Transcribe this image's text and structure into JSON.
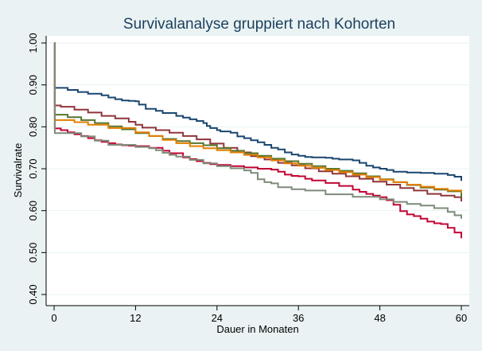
{
  "chart_data": {
    "type": "line",
    "step": true,
    "title": "Survivalanalyse gruppiert nach Kohorten",
    "xlabel": "Dauer in Monaten",
    "ylabel": "Survivalrate",
    "xlim": [
      0,
      60
    ],
    "ylim": [
      0.4,
      1.0
    ],
    "xticks": [
      0,
      12,
      24,
      36,
      48,
      60
    ],
    "yticks": [
      0.4,
      0.5,
      0.6,
      0.7,
      0.8,
      0.9,
      1.0
    ],
    "yticklabels": [
      "0.40",
      "0.50",
      "0.60",
      "0.70",
      "0.80",
      "0.90",
      "1.00"
    ],
    "xticklabels": [
      "0",
      "12",
      "24",
      "36",
      "48",
      "60"
    ],
    "grid": "horizontal",
    "legend": "none",
    "series": [
      {
        "color": "#1a476f",
        "x": [
          0,
          0.1,
          2,
          3.5,
          5,
          7,
          8,
          9,
          10,
          11,
          12,
          12.5,
          13.5,
          15,
          16,
          18,
          19,
          20,
          21,
          22,
          22.5,
          23,
          24,
          24.5,
          26,
          27,
          28,
          29,
          30,
          31,
          32,
          33,
          34,
          35,
          36,
          37,
          38,
          40,
          41,
          42,
          44,
          45,
          46,
          47,
          48,
          49,
          50,
          52,
          54,
          56,
          58,
          59,
          60
        ],
        "y": [
          1.0,
          0.893,
          0.888,
          0.883,
          0.879,
          0.875,
          0.87,
          0.866,
          0.863,
          0.862,
          0.861,
          0.853,
          0.843,
          0.838,
          0.833,
          0.826,
          0.822,
          0.818,
          0.814,
          0.809,
          0.802,
          0.797,
          0.792,
          0.789,
          0.786,
          0.777,
          0.773,
          0.768,
          0.763,
          0.757,
          0.75,
          0.746,
          0.739,
          0.734,
          0.731,
          0.728,
          0.727,
          0.726,
          0.724,
          0.722,
          0.72,
          0.714,
          0.707,
          0.703,
          0.7,
          0.697,
          0.693,
          0.691,
          0.69,
          0.688,
          0.685,
          0.681,
          0.671
        ]
      },
      {
        "color": "#90353b",
        "x": [
          0,
          0.1,
          1,
          3,
          5,
          7,
          9,
          11,
          12,
          13,
          15,
          17,
          19,
          21,
          23,
          25,
          27,
          29,
          31,
          33,
          35,
          37,
          39,
          41,
          43,
          45,
          47,
          49,
          51,
          53,
          55,
          57,
          59,
          60
        ],
        "y": [
          1.0,
          0.851,
          0.848,
          0.841,
          0.834,
          0.826,
          0.82,
          0.812,
          0.805,
          0.798,
          0.792,
          0.786,
          0.778,
          0.77,
          0.76,
          0.75,
          0.739,
          0.73,
          0.722,
          0.714,
          0.708,
          0.701,
          0.694,
          0.688,
          0.682,
          0.676,
          0.669,
          0.662,
          0.654,
          0.648,
          0.64,
          0.636,
          0.632,
          0.622
        ]
      },
      {
        "color": "#55752f",
        "x": [
          0,
          0.1,
          2,
          4,
          6,
          8,
          10,
          12,
          14,
          16,
          18,
          20,
          22,
          24,
          26,
          28,
          30,
          32,
          34,
          36,
          38,
          40,
          42,
          44,
          46,
          48,
          50,
          52,
          54,
          56,
          58,
          60
        ],
        "y": [
          1.0,
          0.829,
          0.823,
          0.816,
          0.809,
          0.801,
          0.794,
          0.785,
          0.778,
          0.771,
          0.766,
          0.761,
          0.756,
          0.749,
          0.743,
          0.737,
          0.731,
          0.724,
          0.718,
          0.712,
          0.706,
          0.7,
          0.695,
          0.689,
          0.682,
          0.675,
          0.668,
          0.661,
          0.655,
          0.65,
          0.646,
          0.631
        ]
      },
      {
        "color": "#e37e00",
        "x": [
          0,
          0.1,
          3,
          5,
          8,
          12,
          14,
          16,
          18,
          20,
          22,
          24,
          26,
          28,
          30,
          32,
          34,
          36,
          38,
          40,
          42,
          44,
          46,
          48,
          50,
          52,
          54,
          56,
          58,
          60
        ],
        "y": [
          1.0,
          0.816,
          0.811,
          0.805,
          0.797,
          0.787,
          0.778,
          0.769,
          0.761,
          0.754,
          0.749,
          0.744,
          0.739,
          0.733,
          0.727,
          0.72,
          0.713,
          0.707,
          0.702,
          0.697,
          0.692,
          0.686,
          0.68,
          0.674,
          0.668,
          0.662,
          0.657,
          0.652,
          0.648,
          0.642
        ]
      },
      {
        "color": "#c10534",
        "x": [
          0,
          0.1,
          1,
          2,
          3,
          4,
          5,
          6,
          7,
          8,
          9,
          10,
          11,
          12,
          14,
          16,
          17,
          19,
          20,
          21,
          22,
          23,
          24,
          26,
          28,
          30,
          32,
          33,
          34,
          35,
          36,
          37,
          38,
          40,
          42,
          44,
          45,
          46,
          47,
          48,
          49,
          50,
          51,
          52,
          53,
          54,
          55,
          56,
          57,
          58,
          59,
          60
        ],
        "y": [
          1.0,
          0.796,
          0.792,
          0.787,
          0.782,
          0.778,
          0.773,
          0.768,
          0.764,
          0.761,
          0.758,
          0.756,
          0.755,
          0.754,
          0.75,
          0.743,
          0.737,
          0.727,
          0.723,
          0.718,
          0.714,
          0.711,
          0.709,
          0.706,
          0.703,
          0.7,
          0.698,
          0.693,
          0.686,
          0.683,
          0.682,
          0.676,
          0.672,
          0.666,
          0.659,
          0.65,
          0.645,
          0.64,
          0.636,
          0.632,
          0.625,
          0.614,
          0.599,
          0.591,
          0.587,
          0.581,
          0.574,
          0.57,
          0.568,
          0.559,
          0.548,
          0.534
        ]
      },
      {
        "color": "#7d8c7a",
        "x": [
          0,
          0.1,
          4,
          6,
          8,
          12,
          14,
          15,
          16,
          17,
          18,
          20,
          22,
          24,
          26,
          28,
          29,
          30,
          31,
          32,
          33,
          35,
          37,
          40,
          44,
          48,
          50,
          52,
          54,
          56,
          58,
          59,
          60
        ],
        "y": [
          1.0,
          0.785,
          0.777,
          0.767,
          0.757,
          0.752,
          0.749,
          0.744,
          0.738,
          0.733,
          0.729,
          0.721,
          0.713,
          0.706,
          0.701,
          0.696,
          0.69,
          0.675,
          0.668,
          0.665,
          0.656,
          0.651,
          0.648,
          0.639,
          0.633,
          0.627,
          0.621,
          0.616,
          0.612,
          0.606,
          0.597,
          0.589,
          0.581
        ]
      }
    ]
  }
}
